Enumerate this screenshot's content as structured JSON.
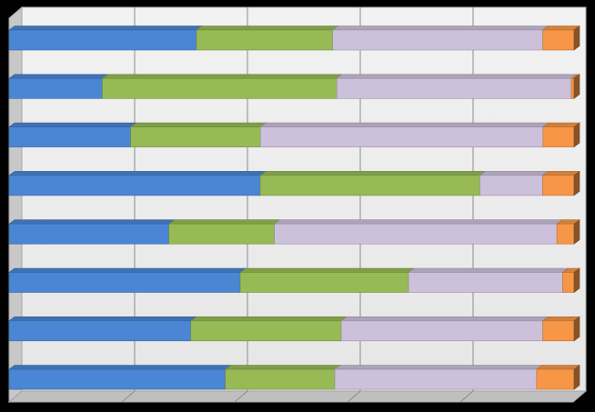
{
  "chart_data": {
    "type": "bar",
    "orientation": "horizontal",
    "stacking": "percent",
    "style": "3d",
    "title": "",
    "xlabel": "",
    "ylabel": "",
    "xlim": [
      0,
      100
    ],
    "gridlines": "vertical",
    "gridline_values": [
      0,
      20,
      40,
      60,
      80,
      100
    ],
    "legend": "none",
    "categories": [
      "",
      "",
      "",
      "",
      "",
      "",
      "",
      ""
    ],
    "series": [
      {
        "color": "#4A86D4",
        "values": [
          33,
          16.5,
          21.5,
          44,
          28,
          40.5,
          32,
          37.5
        ]
      },
      {
        "color": "#97BA55",
        "values": [
          24,
          41.5,
          23,
          38.5,
          18.5,
          29.5,
          26.5,
          19
        ]
      },
      {
        "color": "#CCC0DA",
        "values": [
          37,
          41.5,
          50,
          11,
          49.5,
          27,
          35.5,
          35
        ]
      },
      {
        "color": "#F79646",
        "values": [
          5.5,
          0.5,
          5.5,
          5.5,
          3,
          2,
          5.5,
          6.5
        ]
      }
    ]
  }
}
